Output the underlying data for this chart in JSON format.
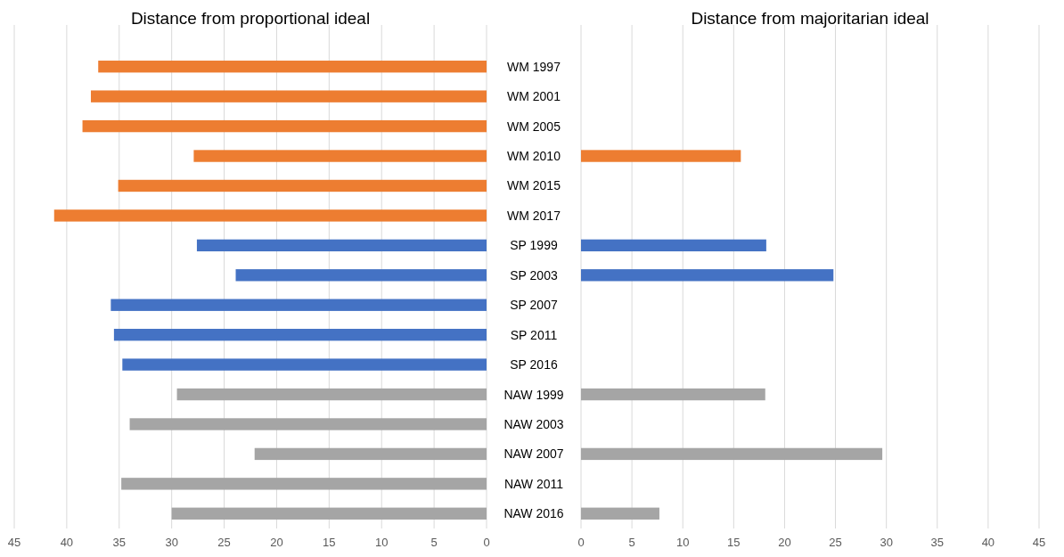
{
  "chart_data": [
    {
      "type": "bar",
      "orientation": "horizontal",
      "title": "Distance from proportional ideal",
      "categories": [
        "WM 1997",
        "WM 2001",
        "WM 2005",
        "WM 2010",
        "WM 2015",
        "WM 2017",
        "SP 1999",
        "SP 2003",
        "SP 2007",
        "SP 2011",
        "SP 2016",
        "NAW 1999",
        "NAW 2003",
        "NAW 2007",
        "NAW 2011",
        "NAW 2016"
      ],
      "values": [
        37.0,
        37.7,
        38.5,
        27.9,
        35.1,
        41.2,
        27.6,
        23.9,
        35.8,
        35.5,
        34.7,
        29.5,
        34.0,
        22.1,
        34.8,
        30.0
      ],
      "colors": [
        "#ed7d31",
        "#ed7d31",
        "#ed7d31",
        "#ed7d31",
        "#ed7d31",
        "#ed7d31",
        "#4472c4",
        "#4472c4",
        "#4472c4",
        "#4472c4",
        "#4472c4",
        "#a5a5a5",
        "#a5a5a5",
        "#a5a5a5",
        "#a5a5a5",
        "#a5a5a5"
      ],
      "xlim": [
        45,
        0
      ],
      "xticks": [
        45,
        40,
        35,
        30,
        25,
        20,
        15,
        10,
        5,
        0
      ],
      "grid": "x"
    },
    {
      "type": "bar",
      "orientation": "horizontal",
      "title": "Distance from majoritarian ideal",
      "categories": [
        null,
        null,
        null,
        null,
        null,
        null,
        null,
        null,
        null,
        null,
        null,
        null,
        null,
        null,
        null,
        null
      ],
      "values": [
        null,
        null,
        null,
        15.7,
        null,
        null,
        18.2,
        24.8,
        null,
        null,
        null,
        18.1,
        null,
        29.6,
        null,
        7.7
      ],
      "colors": [
        null,
        null,
        null,
        "#ed7d31",
        null,
        null,
        "#4472c4",
        "#4472c4",
        null,
        null,
        null,
        "#a5a5a5",
        null,
        "#a5a5a5",
        null,
        "#a5a5a5"
      ],
      "xlim": [
        0,
        45
      ],
      "xticks": [
        0,
        5,
        10,
        15,
        20,
        25,
        30,
        35,
        40,
        45
      ],
      "grid": "x",
      "tick_labels": "x"
    }
  ]
}
